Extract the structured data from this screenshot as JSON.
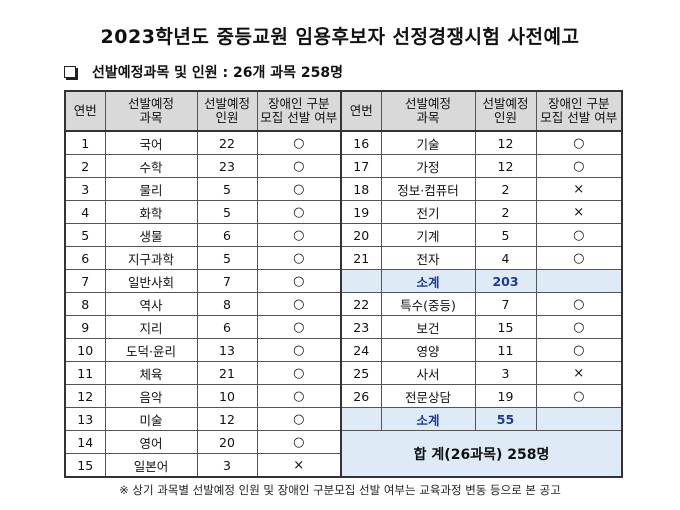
{
  "title": "2023학년도 중등교원 임용후보자 선정경쟁시험 사전예고",
  "subtitle": "선발예정과목 및 인원 : 26개 과목 258명",
  "headers": {
    "no": "연번",
    "subject_line1": "선발예정",
    "subject_line2": "과목",
    "count_line1": "선발예정",
    "count_line2": "인원",
    "disabled_line1": "장애인 구분",
    "disabled_line2": "모집 선발 여부"
  },
  "left_rows": [
    {
      "no": "1",
      "subject": "국어",
      "count": "22",
      "disabled": "○"
    },
    {
      "no": "2",
      "subject": "수학",
      "count": "23",
      "disabled": "○"
    },
    {
      "no": "3",
      "subject": "물리",
      "count": "5",
      "disabled": "○"
    },
    {
      "no": "4",
      "subject": "화학",
      "count": "5",
      "disabled": "○"
    },
    {
      "no": "5",
      "subject": "생물",
      "count": "6",
      "disabled": "○"
    },
    {
      "no": "6",
      "subject": "지구과학",
      "count": "5",
      "disabled": "○"
    },
    {
      "no": "7",
      "subject": "일반사회",
      "count": "7",
      "disabled": "○"
    },
    {
      "no": "8",
      "subject": "역사",
      "count": "8",
      "disabled": "○"
    },
    {
      "no": "9",
      "subject": "지리",
      "count": "6",
      "disabled": "○"
    },
    {
      "no": "10",
      "subject": "도덕·윤리",
      "count": "13",
      "disabled": "○"
    },
    {
      "no": "11",
      "subject": "체육",
      "count": "21",
      "disabled": "○"
    },
    {
      "no": "12",
      "subject": "음악",
      "count": "10",
      "disabled": "○"
    },
    {
      "no": "13",
      "subject": "미술",
      "count": "12",
      "disabled": "○"
    },
    {
      "no": "14",
      "subject": "영어",
      "count": "20",
      "disabled": "○"
    },
    {
      "no": "15",
      "subject": "일본어",
      "count": "3",
      "disabled": "×"
    }
  ],
  "right_rows": [
    {
      "no": "16",
      "subject": "기술",
      "count": "12",
      "disabled": "○"
    },
    {
      "no": "17",
      "subject": "가정",
      "count": "12",
      "disabled": "○"
    },
    {
      "no": "18",
      "subject": "정보·컴퓨터",
      "count": "2",
      "disabled": "×"
    },
    {
      "no": "19",
      "subject": "전기",
      "count": "2",
      "disabled": "×"
    },
    {
      "no": "20",
      "subject": "기계",
      "count": "5",
      "disabled": "○"
    },
    {
      "no": "21",
      "subject": "전자",
      "count": "4",
      "disabled": "○"
    },
    {
      "subtotal": true,
      "subject": "소계",
      "count": "203"
    },
    {
      "no": "22",
      "subject": "특수(중등)",
      "count": "7",
      "disabled": "○"
    },
    {
      "no": "23",
      "subject": "보건",
      "count": "15",
      "disabled": "○"
    },
    {
      "no": "24",
      "subject": "영양",
      "count": "11",
      "disabled": "○"
    },
    {
      "no": "25",
      "subject": "사서",
      "count": "3",
      "disabled": "×"
    },
    {
      "no": "26",
      "subject": "전문상담",
      "count": "19",
      "disabled": "○"
    },
    {
      "subtotal": true,
      "subject": "소계",
      "count": "55"
    }
  ],
  "total": "합 계(26과목) 258명",
  "footnote": "※ 상기 과목별 선발예정 인원 및 장애인 구분모집 선발 여부는 교육과정 변동 등으로 본 공고"
}
